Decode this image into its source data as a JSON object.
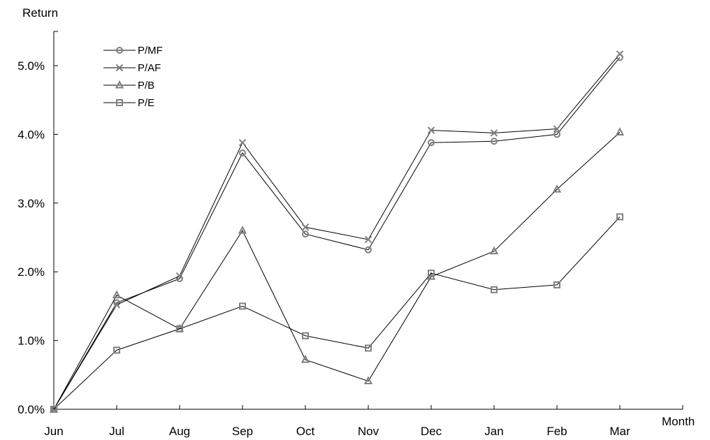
{
  "chart_data": {
    "type": "line",
    "xlabel": "Month",
    "ylabel": "Return",
    "categories": [
      "Jun",
      "Jul",
      "Aug",
      "Sep",
      "Oct",
      "Nov",
      "Dec",
      "Jan",
      "Feb",
      "Mar"
    ],
    "ylim": [
      0,
      5.5
    ],
    "yticks": [
      0,
      1,
      2,
      3,
      4,
      5
    ],
    "ytick_labels": [
      "0.0%",
      "1.0%",
      "2.0%",
      "3.0%",
      "4.0%",
      "5.0%"
    ],
    "grid": false,
    "legend_position": "top-left",
    "series": [
      {
        "name": "P/MF",
        "marker": "circle",
        "values": [
          0.0,
          1.55,
          1.9,
          3.73,
          2.55,
          2.32,
          3.88,
          3.9,
          4.0,
          5.12
        ]
      },
      {
        "name": "P/AF",
        "marker": "x",
        "values": [
          0.0,
          1.52,
          1.94,
          3.88,
          2.65,
          2.47,
          4.06,
          4.02,
          4.08,
          5.17
        ]
      },
      {
        "name": "P/B",
        "marker": "triangle",
        "values": [
          0.0,
          1.66,
          1.17,
          2.6,
          0.72,
          0.41,
          1.93,
          2.3,
          3.2,
          4.03
        ]
      },
      {
        "name": "P/E",
        "marker": "square",
        "values": [
          0.0,
          0.86,
          1.17,
          1.5,
          1.07,
          0.89,
          1.98,
          1.74,
          1.81,
          2.8
        ]
      }
    ],
    "colors": {
      "line": "#000000",
      "marker": "#7f7f7f",
      "axis": "#000000"
    }
  }
}
